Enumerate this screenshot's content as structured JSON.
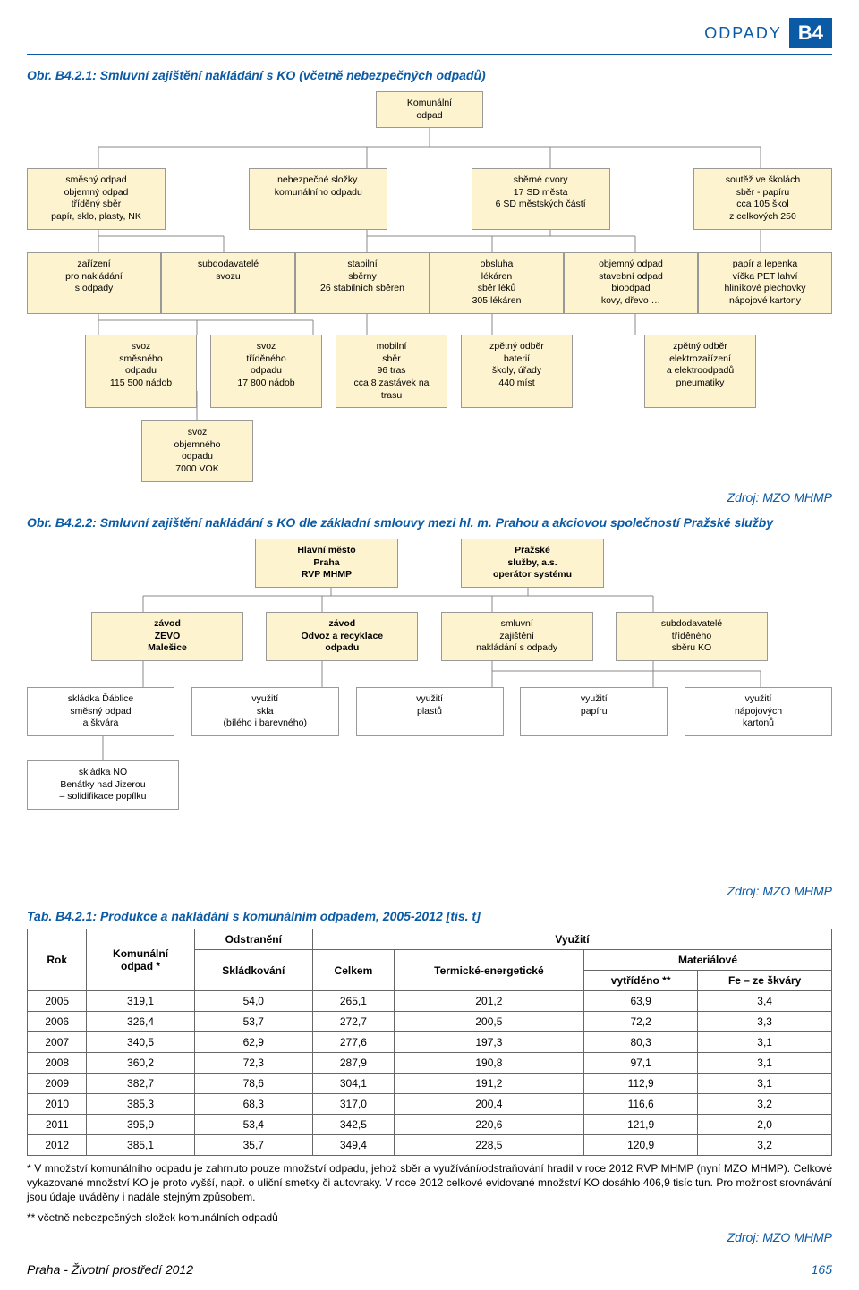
{
  "header": {
    "section": "ODPADY",
    "code": "B4"
  },
  "fig1": {
    "title": "Obr. B4.2.1: Smluvní zajištění nakládání s KO (včetně nebezpečných odpadů)",
    "root": "Komunální\nodpad",
    "L1": [
      "směsný odpad\nobjemný odpad\ntříděný sběr\npapír, sklo, plasty, NK",
      "nebezpečné složky.\nkomunálního odpadu",
      "sběrné dvory\n17 SD města\n6 SD městských částí",
      "soutěž ve školách\nsběr - papíru\ncca 105 škol\nz celkových 250"
    ],
    "L2": [
      "zařízení\npro nakládání\ns odpady",
      "subdodavatelé\nsvozu",
      "stabilní\nsběrny\n26 stabilních sběren",
      "obsluha\nlékáren\nsběr léků\n305 lékáren",
      "objemný odpad\nstavební odpad\nbioodpad\nkovy, dřevo …",
      "papír a lepenka\nvíčka PET lahví\nhliníkové plechovky\nnápojové kartony"
    ],
    "L3": [
      "svoz\nsměsného\nodpadu\n115 500 nádob",
      "svoz\ntříděného\nodpadu\n17 800 nádob",
      "mobilní\nsběr\n96 tras\ncca 8 zastávek na trasu",
      "zpětný odběr\nbaterií\nškoly, úřady\n440 míst",
      "zpětný odběr\nelektrozařízení\na elektroodpadů\npneumatiky"
    ],
    "L4": "svoz\nobjemného\nodpadu\n7000 VOK",
    "source": "Zdroj: MZO MHMP"
  },
  "fig2": {
    "title": "Obr. B4.2.2: Smluvní zajištění nakládání s KO dle základní smlouvy mezi hl. m. Prahou a akciovou společností Pražské služby",
    "L0": [
      "Hlavní město\nPraha\nRVP MHMP",
      "Pražské\nslužby, a.s.\noperátor systému"
    ],
    "L1": [
      "závod\nZEVO\nMalešice",
      "závod\nOdvoz a recyklace\nodpadu",
      "smluvní\nzajištění\nnakládání s odpady",
      "subdodavatelé\ntříděného\nsběru KO"
    ],
    "L2": [
      "skládka Ďáblice\nsměsný odpad\na škvára",
      "využití\nskla\n(bílého i barevného)",
      "využití\nplastů",
      "využití\npapíru",
      "využití\nnápojových\nkartonů"
    ],
    "L3": "skládka NO\nBenátky nad Jizerou\n– solidifikace popílku",
    "source": "Zdroj: MZO MHMP"
  },
  "table": {
    "title": "Tab. B4.2.1: Produkce a nakládání s komunálním odpadem, 2005-2012 [tis. t]",
    "h": {
      "rok": "Rok",
      "ko": "Komunální\nodpad *",
      "odstr": "Odstranění",
      "vyuz": "Využití",
      "sklad": "Skládkování",
      "celkem": "Celkem",
      "term": "Termické-energetické",
      "mat": "Materiálové",
      "vytr": "vytříděno **",
      "fe": "Fe – ze škváry"
    },
    "rows": [
      [
        "2005",
        "319,1",
        "54,0",
        "265,1",
        "201,2",
        "63,9",
        "3,4"
      ],
      [
        "2006",
        "326,4",
        "53,7",
        "272,7",
        "200,5",
        "72,2",
        "3,3"
      ],
      [
        "2007",
        "340,5",
        "62,9",
        "277,6",
        "197,3",
        "80,3",
        "3,1"
      ],
      [
        "2008",
        "360,2",
        "72,3",
        "287,9",
        "190,8",
        "97,1",
        "3,1"
      ],
      [
        "2009",
        "382,7",
        "78,6",
        "304,1",
        "191,2",
        "112,9",
        "3,1"
      ],
      [
        "2010",
        "385,3",
        "68,3",
        "317,0",
        "200,4",
        "116,6",
        "3,2"
      ],
      [
        "2011",
        "395,9",
        "53,4",
        "342,5",
        "220,6",
        "121,9",
        "2,0"
      ],
      [
        "2012",
        "385,1",
        "35,7",
        "349,4",
        "228,5",
        "120,9",
        "3,2"
      ]
    ],
    "note1": "* V množství komunálního odpadu je zahrnuto pouze množství odpadu, jehož sběr a využívání/odstraňování hradil v roce 2012 RVP MHMP (nyní MZO MHMP). Celkové vykazované množství KO je proto vyšší, např. o uliční smetky či autovraky. V roce 2012 celkové evidované množství KO dosáhlo 406,9 tisíc tun. Pro možnost srovnávání jsou údaje uváděny i nadále stejným způsobem.",
    "note2": "** včetně nebezpečných složek komunálních odpadů",
    "source": "Zdroj: MZO MHMP"
  },
  "footer": {
    "left": "Praha - Životní prostředí 2012",
    "page": "165"
  }
}
